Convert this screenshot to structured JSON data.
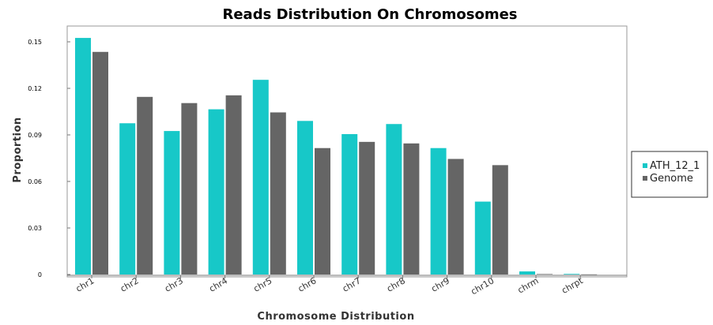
{
  "chart_data": {
    "type": "bar",
    "title": "Reads Distribution On Chromosomes",
    "xlabel": "Chromosome Distribution",
    "ylabel": "Proportion",
    "categories": [
      "chr1",
      "chr2",
      "chr3",
      "chr4",
      "chr5",
      "chr6",
      "chr7",
      "chr8",
      "chr9",
      "chr10",
      "chrm",
      "chrpt"
    ],
    "series": [
      {
        "name": "ATH_12_1",
        "color": "#17c8c8",
        "values": [
          0.1525,
          0.0975,
          0.0925,
          0.1065,
          0.1255,
          0.099,
          0.0905,
          0.097,
          0.0815,
          0.047,
          0.002,
          0.0004
        ]
      },
      {
        "name": "Genome",
        "color": "#656565",
        "values": [
          0.1435,
          0.1145,
          0.1105,
          0.1155,
          0.1045,
          0.0815,
          0.0855,
          0.0845,
          0.0745,
          0.0705,
          0.0003,
          0.0001
        ]
      }
    ],
    "yticks": [
      0,
      0.03,
      0.06,
      0.09,
      0.12,
      0.15
    ],
    "ytick_labels": [
      "0",
      "0.03",
      "0.06",
      "0.09",
      "0.12",
      "0.15"
    ],
    "ylim": [
      0,
      0.16
    ],
    "legend_position": "right",
    "grid": false
  }
}
